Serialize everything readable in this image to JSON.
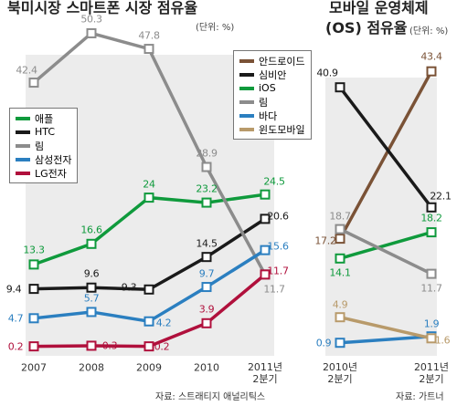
{
  "chart_data": [
    {
      "type": "line",
      "title": "북미시장 스마트폰 시장 점유율",
      "subtitle": "(단위: %)",
      "source": "자료: 스트래티지 애널리틱스",
      "categories": [
        "2007",
        "2008",
        "2009",
        "2010",
        "2011년 2분기"
      ],
      "series": [
        {
          "name": "애플",
          "color": "#0f9a3c",
          "values": [
            13.3,
            16.6,
            24,
            23.2,
            24.5
          ]
        },
        {
          "name": "HTC",
          "color": "#1a1a1a",
          "values": [
            9.4,
            9.6,
            9.3,
            14.5,
            20.6
          ]
        },
        {
          "name": "림",
          "color": "#8c8c8c",
          "values": [
            42.4,
            50.3,
            47.8,
            28.9,
            11.7
          ]
        },
        {
          "name": "삼성전자",
          "color": "#2b7fc0",
          "values": [
            4.7,
            5.7,
            4.2,
            9.7,
            15.6
          ]
        },
        {
          "name": "LG전자",
          "color": "#b0103c",
          "values": [
            0.2,
            0.3,
            0.2,
            3.9,
            11.7
          ]
        }
      ]
    },
    {
      "type": "line",
      "title": "모바일 운영체제",
      "title2": "(OS) 점유율",
      "subtitle": "(단위: %)",
      "source": "자료: 가트너",
      "categories": [
        "2010년 2분기",
        "2011년 2분기"
      ],
      "series": [
        {
          "name": "안드로이드",
          "color": "#7a5236",
          "values": [
            17.2,
            43.4
          ]
        },
        {
          "name": "심비안",
          "color": "#1a1a1a",
          "values": [
            40.9,
            22.1
          ]
        },
        {
          "name": "iOS",
          "color": "#0f9a3c",
          "values": [
            14.1,
            18.2
          ]
        },
        {
          "name": "림",
          "color": "#8c8c8c",
          "values": [
            18.7,
            11.7
          ]
        },
        {
          "name": "바다",
          "color": "#2b7fc0",
          "values": [
            0.9,
            1.9
          ]
        },
        {
          "name": "윈도모바일",
          "color": "#b89a6a",
          "values": [
            4.9,
            1.6
          ]
        }
      ]
    }
  ]
}
